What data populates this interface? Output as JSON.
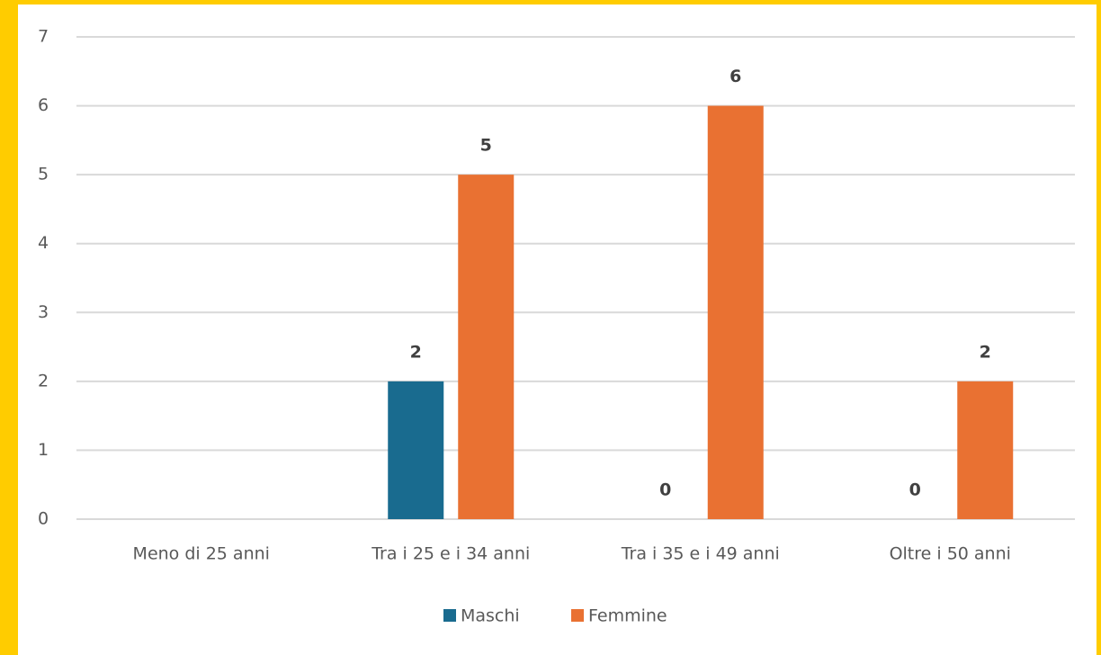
{
  "chart_data": {
    "type": "bar",
    "categories": [
      "Meno di 25 anni",
      "Tra i 25 e i 34 anni",
      "Tra i 35 e i 49 anni",
      "Oltre i 50 anni"
    ],
    "series": [
      {
        "name": "Maschi",
        "color": "#196b8f",
        "values": [
          null,
          2,
          0,
          0
        ]
      },
      {
        "name": "Femmine",
        "color": "#e97132",
        "values": [
          null,
          5,
          6,
          2
        ]
      }
    ],
    "ylim": [
      0,
      7
    ],
    "yticks": [
      0,
      1,
      2,
      3,
      4,
      5,
      6,
      7
    ],
    "grid": true,
    "legend": "bottom"
  }
}
